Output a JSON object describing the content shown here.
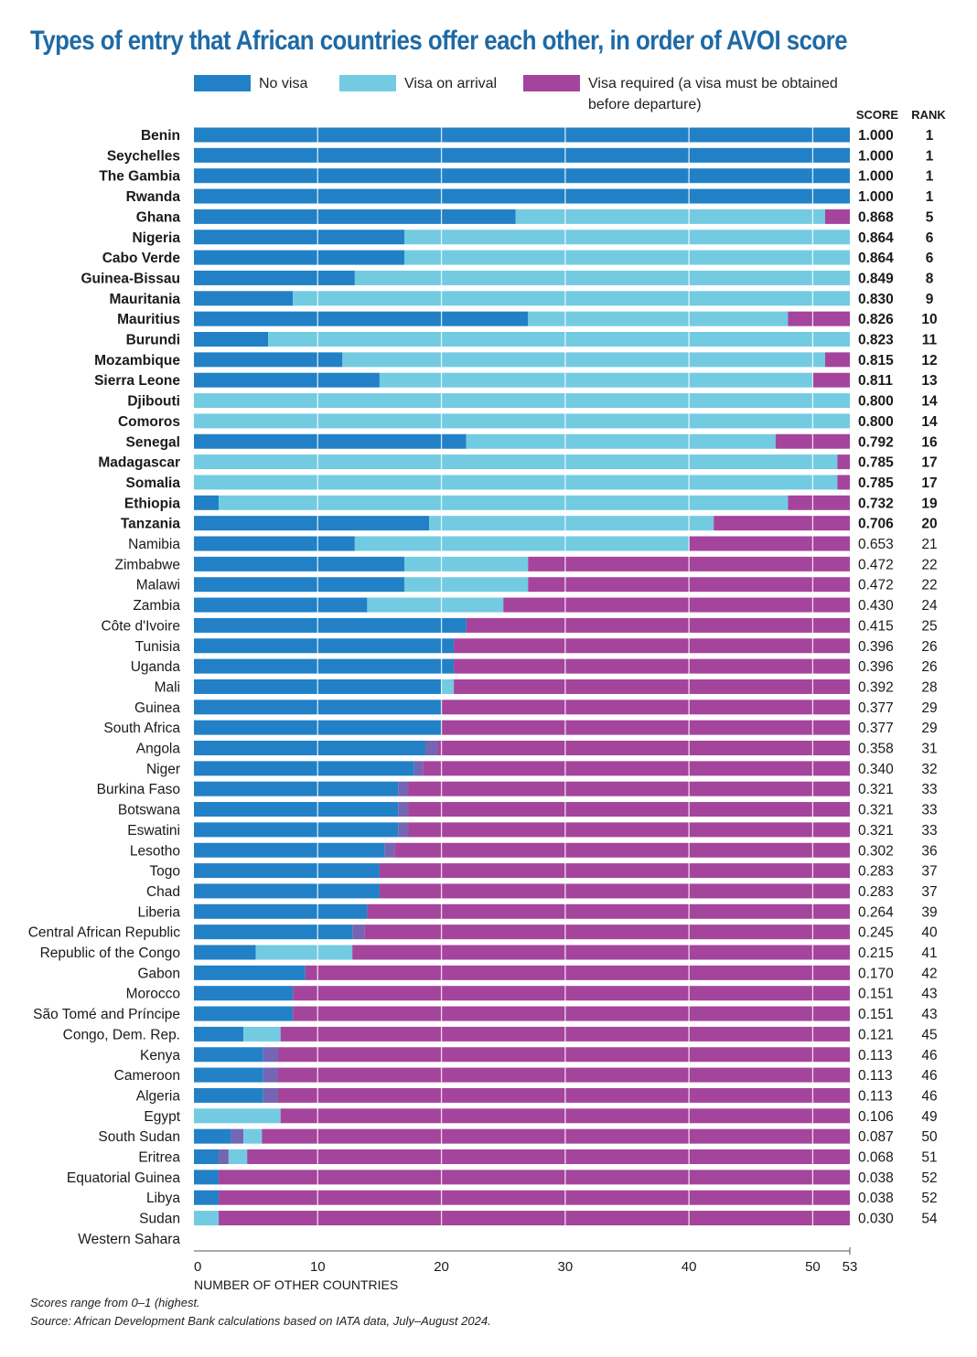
{
  "title": "Types of entry that African countries offer each other, in order of AVOI score",
  "legend": {
    "no_visa": "No visa",
    "visa_on_arrival": "Visa on arrival",
    "visa_required": "Visa required (a visa must be obtained before departure)",
    "visa_required_line1": "Visa required (a visa must be obtained",
    "visa_required_line2": "before departure)"
  },
  "colors": {
    "no_visa": "#2281c6",
    "visa_on_arrival": "#73cbe2",
    "visa_required": "#a5449c",
    "eta": "#7466b2",
    "title": "#1f6aa5"
  },
  "columns": {
    "score": "SCORE",
    "rank": "RANK"
  },
  "footnotes": {
    "note": "Scores range from 0–1 (highest.",
    "source": "Source: African Development Bank calculations based on IATA data, July–August 2024."
  },
  "chart_data": {
    "type": "bar",
    "orientation": "horizontal",
    "stacked": true,
    "xlabel": "NUMBER OF OTHER COUNTRIES",
    "xlim": [
      0,
      53
    ],
    "xticks": [
      0,
      10,
      20,
      30,
      40,
      50,
      53
    ],
    "grid": true,
    "legend_position": "top",
    "series": [
      {
        "name": "No visa",
        "color": "#2281c6"
      },
      {
        "name": "Visa on arrival",
        "color": "#73cbe2"
      },
      {
        "name": "Visa required (a visa must be obtained before departure)",
        "color": "#a5449c"
      }
    ],
    "countries": [
      {
        "country": "Benin",
        "no_visa": 53,
        "eta": 0,
        "visa_on_arrival": 0,
        "visa_required": 0,
        "score": "1.000",
        "rank": "1",
        "top20": true
      },
      {
        "country": "Seychelles",
        "no_visa": 53,
        "eta": 0,
        "visa_on_arrival": 0,
        "visa_required": 0,
        "score": "1.000",
        "rank": "1",
        "top20": true
      },
      {
        "country": "The Gambia",
        "no_visa": 53,
        "eta": 0,
        "visa_on_arrival": 0,
        "visa_required": 0,
        "score": "1.000",
        "rank": "1",
        "top20": true
      },
      {
        "country": "Rwanda",
        "no_visa": 53,
        "eta": 0,
        "visa_on_arrival": 0,
        "visa_required": 0,
        "score": "1.000",
        "rank": "1",
        "top20": true
      },
      {
        "country": "Ghana",
        "no_visa": 26,
        "eta": 0,
        "visa_on_arrival": 25,
        "visa_required": 2,
        "score": "0.868",
        "rank": "5",
        "top20": true
      },
      {
        "country": "Nigeria",
        "no_visa": 17,
        "eta": 0,
        "visa_on_arrival": 36,
        "visa_required": 0,
        "score": "0.864",
        "rank": "6",
        "top20": true
      },
      {
        "country": "Cabo Verde",
        "no_visa": 17,
        "eta": 0,
        "visa_on_arrival": 36,
        "visa_required": 0,
        "score": "0.864",
        "rank": "6",
        "top20": true
      },
      {
        "country": "Guinea-Bissau",
        "no_visa": 13,
        "eta": 0,
        "visa_on_arrival": 40,
        "visa_required": 0,
        "score": "0.849",
        "rank": "8",
        "top20": true
      },
      {
        "country": "Mauritania",
        "no_visa": 8,
        "eta": 0,
        "visa_on_arrival": 45,
        "visa_required": 0,
        "score": "0.830",
        "rank": "9",
        "top20": true
      },
      {
        "country": "Mauritius",
        "no_visa": 27,
        "eta": 0,
        "visa_on_arrival": 21,
        "visa_required": 5,
        "score": "0.826",
        "rank": "10",
        "top20": true
      },
      {
        "country": "Burundi",
        "no_visa": 6,
        "eta": 0,
        "visa_on_arrival": 47,
        "visa_required": 0,
        "score": "0.823",
        "rank": "11",
        "top20": true
      },
      {
        "country": "Mozambique",
        "no_visa": 12,
        "eta": 0,
        "visa_on_arrival": 39,
        "visa_required": 2,
        "score": "0.815",
        "rank": "12",
        "top20": true
      },
      {
        "country": "Sierra Leone",
        "no_visa": 15,
        "eta": 0,
        "visa_on_arrival": 35,
        "visa_required": 3,
        "score": "0.811",
        "rank": "13",
        "top20": true
      },
      {
        "country": "Djibouti",
        "no_visa": 0,
        "eta": 0,
        "visa_on_arrival": 53,
        "visa_required": 0,
        "score": "0.800",
        "rank": "14",
        "top20": true
      },
      {
        "country": "Comoros",
        "no_visa": 0,
        "eta": 0,
        "visa_on_arrival": 53,
        "visa_required": 0,
        "score": "0.800",
        "rank": "14",
        "top20": true
      },
      {
        "country": "Senegal",
        "no_visa": 22,
        "eta": 0,
        "visa_on_arrival": 25,
        "visa_required": 6,
        "score": "0.792",
        "rank": "16",
        "top20": true
      },
      {
        "country": "Madagascar",
        "no_visa": 0,
        "eta": 0,
        "visa_on_arrival": 52,
        "visa_required": 1,
        "score": "0.785",
        "rank": "17",
        "top20": true
      },
      {
        "country": "Somalia",
        "no_visa": 0,
        "eta": 0,
        "visa_on_arrival": 52,
        "visa_required": 1,
        "score": "0.785",
        "rank": "17",
        "top20": true
      },
      {
        "country": "Ethiopia",
        "no_visa": 2,
        "eta": 0,
        "visa_on_arrival": 46,
        "visa_required": 5,
        "score": "0.732",
        "rank": "19",
        "top20": true
      },
      {
        "country": "Tanzania",
        "no_visa": 19,
        "eta": 0,
        "visa_on_arrival": 23,
        "visa_required": 11,
        "score": "0.706",
        "rank": "20",
        "top20": true
      },
      {
        "country": "Namibia",
        "no_visa": 13,
        "eta": 0,
        "visa_on_arrival": 27,
        "visa_required": 13,
        "score": "0.653",
        "rank": "21",
        "top20": false
      },
      {
        "country": "Zimbabwe",
        "no_visa": 17,
        "eta": 0,
        "visa_on_arrival": 10,
        "visa_required": 26,
        "score": "0.472",
        "rank": "22",
        "top20": false
      },
      {
        "country": "Malawi",
        "no_visa": 17,
        "eta": 0,
        "visa_on_arrival": 10,
        "visa_required": 26,
        "score": "0.472",
        "rank": "22",
        "top20": false
      },
      {
        "country": "Zambia",
        "no_visa": 14,
        "eta": 0,
        "visa_on_arrival": 11,
        "visa_required": 28,
        "score": "0.430",
        "rank": "24",
        "top20": false
      },
      {
        "country": "Côte d'Ivoire",
        "no_visa": 22,
        "eta": 0,
        "visa_on_arrival": 0,
        "visa_required": 31,
        "score": "0.415",
        "rank": "25",
        "top20": false
      },
      {
        "country": "Tunisia",
        "no_visa": 21,
        "eta": 0,
        "visa_on_arrival": 0,
        "visa_required": 32,
        "score": "0.396",
        "rank": "26",
        "top20": false
      },
      {
        "country": "Uganda",
        "no_visa": 21,
        "eta": 0,
        "visa_on_arrival": 0,
        "visa_required": 32,
        "score": "0.396",
        "rank": "26",
        "top20": false
      },
      {
        "country": "Mali",
        "no_visa": 20,
        "eta": 0,
        "visa_on_arrival": 1,
        "visa_required": 32,
        "score": "0.392",
        "rank": "28",
        "top20": false
      },
      {
        "country": "Guinea",
        "no_visa": 20,
        "eta": 0,
        "visa_on_arrival": 0,
        "visa_required": 33,
        "score": "0.377",
        "rank": "29",
        "top20": false
      },
      {
        "country": "South Africa",
        "no_visa": 20,
        "eta": 0,
        "visa_on_arrival": 0,
        "visa_required": 33,
        "score": "0.377",
        "rank": "29",
        "top20": false
      },
      {
        "country": "Angola",
        "no_visa": 18.7,
        "eta": 1,
        "visa_on_arrival": 0,
        "visa_required": 33.3,
        "score": "0.358",
        "rank": "31",
        "top20": false
      },
      {
        "country": "Niger",
        "no_visa": 17.8,
        "eta": 0.7,
        "visa_on_arrival": 0,
        "visa_required": 34.5,
        "score": "0.340",
        "rank": "32",
        "top20": false
      },
      {
        "country": "Burkina Faso",
        "no_visa": 16.5,
        "eta": 0.8,
        "visa_on_arrival": 0,
        "visa_required": 35.7,
        "score": "0.321",
        "rank": "33",
        "top20": false
      },
      {
        "country": "Botswana",
        "no_visa": 16.5,
        "eta": 0.8,
        "visa_on_arrival": 0,
        "visa_required": 35.7,
        "score": "0.321",
        "rank": "33",
        "top20": false
      },
      {
        "country": "Eswatini",
        "no_visa": 16.5,
        "eta": 0.8,
        "visa_on_arrival": 0,
        "visa_required": 35.7,
        "score": "0.321",
        "rank": "33",
        "top20": false
      },
      {
        "country": "Lesotho",
        "no_visa": 15.4,
        "eta": 0.8,
        "visa_on_arrival": 0,
        "visa_required": 36.8,
        "score": "0.302",
        "rank": "36",
        "top20": false
      },
      {
        "country": "Togo",
        "no_visa": 15,
        "eta": 0,
        "visa_on_arrival": 0,
        "visa_required": 38,
        "score": "0.283",
        "rank": "37",
        "top20": false
      },
      {
        "country": "Chad",
        "no_visa": 15,
        "eta": 0,
        "visa_on_arrival": 0,
        "visa_required": 38,
        "score": "0.283",
        "rank": "37",
        "top20": false
      },
      {
        "country": "Liberia",
        "no_visa": 14,
        "eta": 0,
        "visa_on_arrival": 0,
        "visa_required": 39,
        "score": "0.264",
        "rank": "39",
        "top20": false
      },
      {
        "country": "Central African Republic",
        "no_visa": 12.8,
        "eta": 1,
        "visa_on_arrival": 0,
        "visa_required": 39.2,
        "score": "0.245",
        "rank": "40",
        "top20": false
      },
      {
        "country": "Republic of the Congo",
        "no_visa": 5,
        "eta": 0,
        "visa_on_arrival": 7.8,
        "visa_required": 40.2,
        "score": "0.215",
        "rank": "41",
        "top20": false
      },
      {
        "country": "Gabon",
        "no_visa": 9,
        "eta": 0,
        "visa_on_arrival": 0,
        "visa_required": 44,
        "score": "0.170",
        "rank": "42",
        "top20": false
      },
      {
        "country": "Morocco",
        "no_visa": 8,
        "eta": 0,
        "visa_on_arrival": 0,
        "visa_required": 45,
        "score": "0.151",
        "rank": "43",
        "top20": false
      },
      {
        "country": "São Tomé and Príncipe",
        "no_visa": 8,
        "eta": 0,
        "visa_on_arrival": 0,
        "visa_required": 45,
        "score": "0.151",
        "rank": "43",
        "top20": false
      },
      {
        "country": "Congo, Dem. Rep.",
        "no_visa": 4,
        "eta": 0,
        "visa_on_arrival": 3,
        "visa_required": 46,
        "score": "0.121",
        "rank": "45",
        "top20": false
      },
      {
        "country": "Kenya",
        "no_visa": 5.6,
        "eta": 1.2,
        "visa_on_arrival": 0,
        "visa_required": 46.2,
        "score": "0.113",
        "rank": "46",
        "top20": false
      },
      {
        "country": "Cameroon",
        "no_visa": 5.6,
        "eta": 1.2,
        "visa_on_arrival": 0,
        "visa_required": 46.2,
        "score": "0.113",
        "rank": "46",
        "top20": false
      },
      {
        "country": "Algeria",
        "no_visa": 5.6,
        "eta": 1.2,
        "visa_on_arrival": 0,
        "visa_required": 46.2,
        "score": "0.113",
        "rank": "46",
        "top20": false
      },
      {
        "country": "Egypt",
        "no_visa": 0,
        "eta": 0,
        "visa_on_arrival": 7,
        "visa_required": 46,
        "score": "0.106",
        "rank": "49",
        "top20": false
      },
      {
        "country": "South Sudan",
        "no_visa": 3,
        "eta": 1,
        "visa_on_arrival": 1.5,
        "visa_required": 47.5,
        "score": "0.087",
        "rank": "50",
        "top20": false
      },
      {
        "country": "Eritrea",
        "no_visa": 2,
        "eta": 0.8,
        "visa_on_arrival": 1.5,
        "visa_required": 48.7,
        "score": "0.068",
        "rank": "51",
        "top20": false
      },
      {
        "country": "Equatorial Guinea",
        "no_visa": 2,
        "eta": 0,
        "visa_on_arrival": 0,
        "visa_required": 51,
        "score": "0.038",
        "rank": "52",
        "top20": false
      },
      {
        "country": "Libya",
        "no_visa": 2,
        "eta": 0,
        "visa_on_arrival": 0,
        "visa_required": 51,
        "score": "0.038",
        "rank": "52",
        "top20": false
      },
      {
        "country": "Sudan",
        "no_visa": 0,
        "eta": 0,
        "visa_on_arrival": 2,
        "visa_required": 51,
        "score": "0.030",
        "rank": "54",
        "top20": false
      },
      {
        "country": "Western Sahara",
        "no_visa": 0,
        "eta": 0,
        "visa_on_arrival": 0,
        "visa_required": 0,
        "score": "",
        "rank": "",
        "top20": false
      }
    ]
  }
}
